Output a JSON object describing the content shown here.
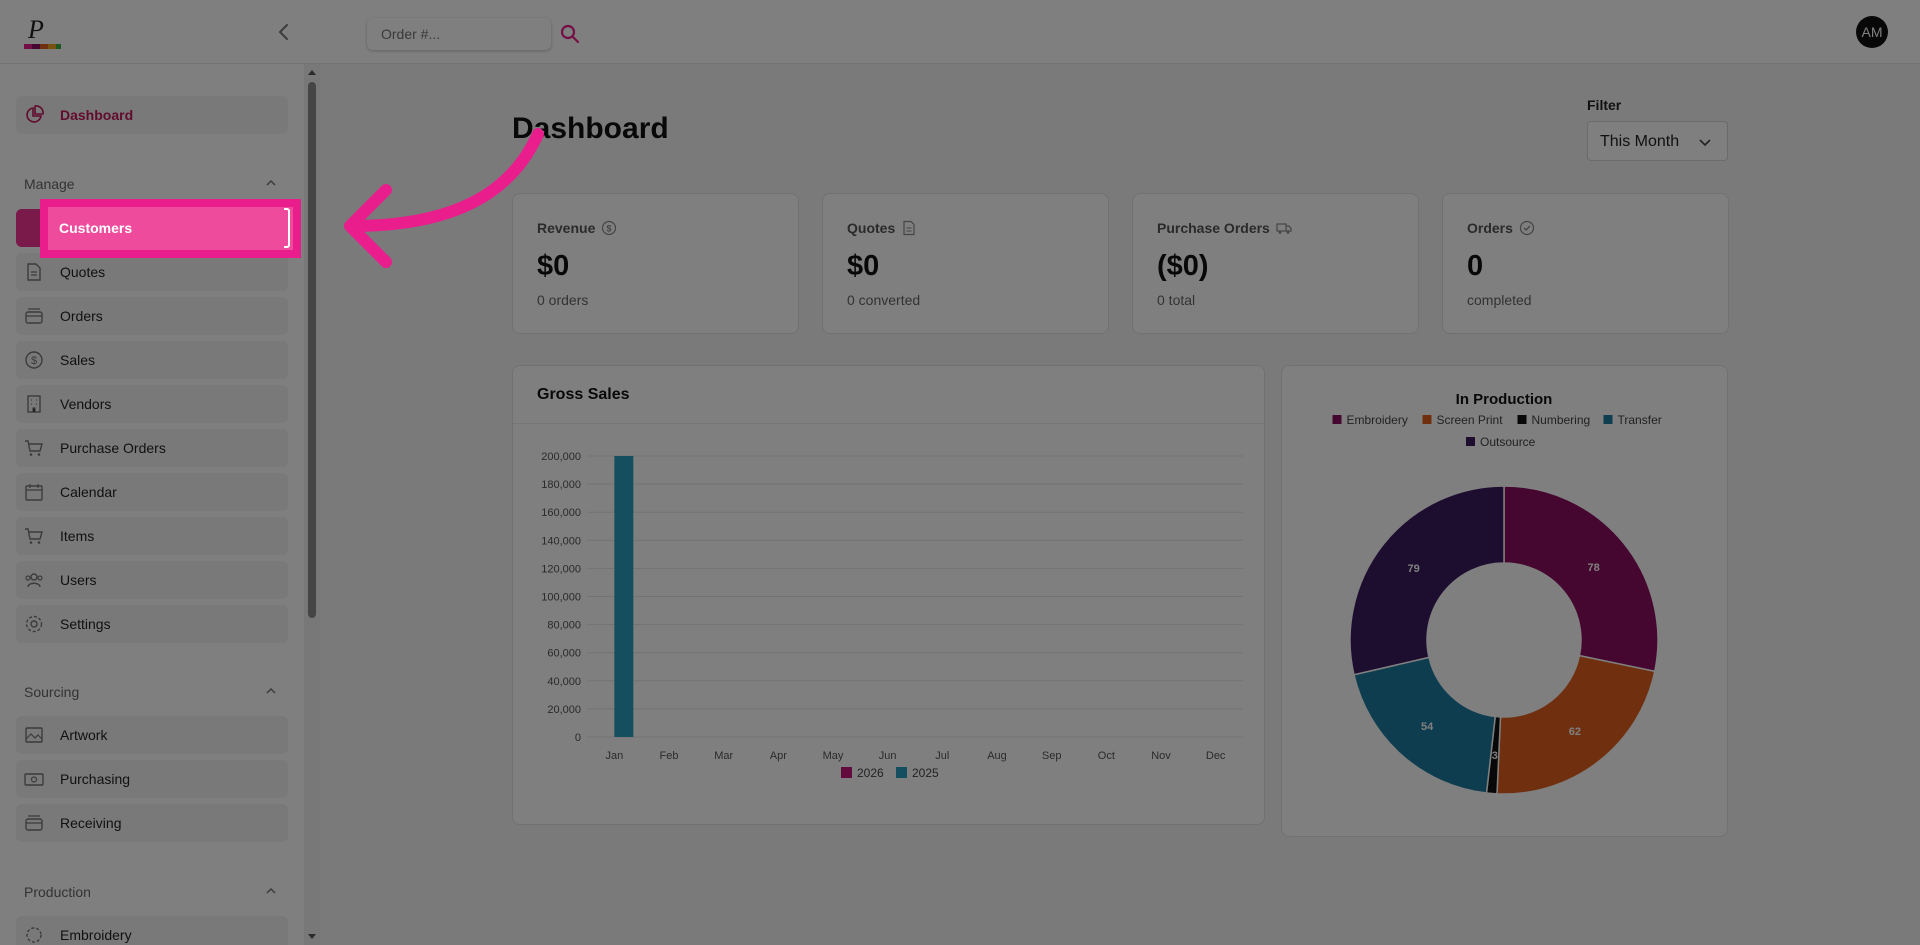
{
  "topbar": {
    "search_placeholder": "Order #...",
    "avatar_initials": "AM"
  },
  "sidebar": {
    "dashboard": "Dashboard",
    "sections": {
      "manage": "Manage",
      "sourcing": "Sourcing",
      "production": "Production"
    },
    "manage_items": [
      "Customers",
      "Quotes",
      "Orders",
      "Sales",
      "Vendors",
      "Purchase Orders",
      "Calendar",
      "Items",
      "Users",
      "Settings"
    ],
    "sourcing_items": [
      "Artwork",
      "Purchasing",
      "Receiving"
    ],
    "production_items": [
      "Embroidery"
    ]
  },
  "main": {
    "title": "Dashboard",
    "filter": {
      "label": "Filter",
      "value": "This Month"
    },
    "cards": [
      {
        "title": "Revenue",
        "value": "$0",
        "sub": "0 orders",
        "icon": "dollar-icon"
      },
      {
        "title": "Quotes",
        "value": "$0",
        "sub": "0 converted",
        "icon": "document-icon"
      },
      {
        "title": "Purchase Orders",
        "value": "($0)",
        "sub": "0 total",
        "icon": "truck-icon"
      },
      {
        "title": "Orders",
        "value": "0",
        "sub": "completed",
        "icon": "check-circle-icon"
      }
    ]
  },
  "colors": {
    "accent": "#e91e8c",
    "brand_dark": "#c2185b",
    "series_2026": "#c2187a",
    "series_2025": "#2a9fbf",
    "embroidery": "#8b0f5e",
    "screen_print": "#e06020",
    "numbering": "#111111",
    "transfer": "#1a7a9e",
    "outsource": "#3a1a5e"
  },
  "chart_data": [
    {
      "type": "bar",
      "title": "Gross Sales",
      "categories": [
        "Jan",
        "Feb",
        "Mar",
        "Apr",
        "May",
        "Jun",
        "Jul",
        "Aug",
        "Sep",
        "Oct",
        "Nov",
        "Dec"
      ],
      "series": [
        {
          "name": "2026",
          "values": [
            0,
            0,
            0,
            0,
            0,
            0,
            0,
            0,
            0,
            0,
            0,
            0
          ]
        },
        {
          "name": "2025",
          "values": [
            200000,
            0,
            0,
            0,
            0,
            0,
            0,
            0,
            0,
            0,
            0,
            0
          ]
        }
      ],
      "ylim": [
        0,
        200000
      ],
      "yticks": [
        0,
        20000,
        40000,
        60000,
        80000,
        100000,
        120000,
        140000,
        160000,
        180000,
        200000
      ],
      "ytick_labels": [
        "0",
        "20,000",
        "40,000",
        "60,000",
        "80,000",
        "100,000",
        "120,000",
        "140,000",
        "160,000",
        "180,000",
        "200,000"
      ],
      "grid": true,
      "legend": "bottom"
    },
    {
      "type": "pie",
      "title": "In Production",
      "labels": [
        "Embroidery",
        "Screen Print",
        "Numbering",
        "Transfer",
        "Outsource"
      ],
      "values": [
        78,
        62,
        3,
        54,
        79
      ],
      "donut": true,
      "legend": "top"
    }
  ]
}
